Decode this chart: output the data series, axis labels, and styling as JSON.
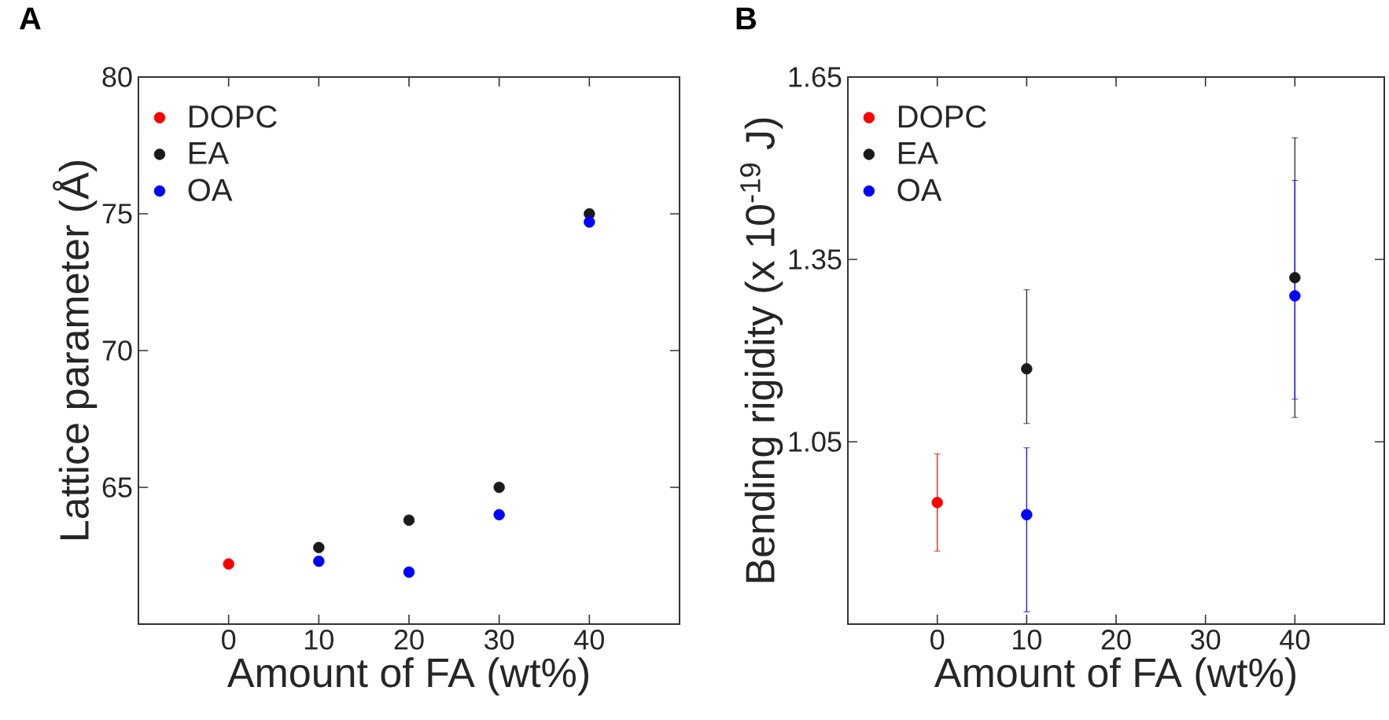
{
  "chart_data": [
    {
      "type": "scatter",
      "title": "A",
      "xlabel": "Amount of FA (wt%)",
      "ylabel": "Lattice parameter (Å)",
      "xlim": [
        -10,
        50
      ],
      "ylim": [
        60,
        80
      ],
      "xticks": [
        0,
        10,
        20,
        30,
        40
      ],
      "yticks": [
        65,
        70,
        75,
        80
      ],
      "legend": "top left",
      "marker": "circle",
      "series": [
        {
          "name": "DOPC",
          "color": "#ff0000",
          "x": [
            0
          ],
          "values": [
            62.2
          ]
        },
        {
          "name": "EA",
          "color": "#1a1a1a",
          "x": [
            10,
            20,
            30,
            40
          ],
          "values": [
            62.8,
            63.8,
            65.0,
            75.0
          ]
        },
        {
          "name": "OA",
          "color": "#0000ff",
          "x": [
            10,
            20,
            30,
            40
          ],
          "values": [
            62.3,
            61.9,
            64.0,
            74.7
          ]
        }
      ]
    },
    {
      "type": "scatter",
      "title": "B",
      "xlabel": "Amount of FA (wt%)",
      "ylabel": "Bending rigidity (x 10$^{-19}$ J)",
      "xlim": [
        -10,
        50
      ],
      "ylim": [
        0.75,
        1.65
      ],
      "xticks": [
        0,
        10,
        20,
        30,
        40
      ],
      "yticks": [
        1.05,
        1.35,
        1.65
      ],
      "legend": "top left",
      "marker": "circle",
      "series": [
        {
          "name": "DOPC",
          "color": "#ff0000",
          "x": [
            0
          ],
          "values": [
            0.95
          ],
          "errors": [
            [
              0.87,
              1.03
            ]
          ]
        },
        {
          "name": "EA",
          "color": "#1a1a1a",
          "x": [
            10,
            40
          ],
          "values": [
            1.17,
            1.32
          ],
          "errors": [
            [
              1.08,
              1.3
            ],
            [
              1.09,
              1.55
            ]
          ]
        },
        {
          "name": "OA",
          "color": "#0000ff",
          "x": [
            10,
            40
          ],
          "values": [
            0.93,
            1.29
          ],
          "errors": [
            [
              0.77,
              1.04
            ],
            [
              1.12,
              1.48
            ]
          ]
        }
      ]
    }
  ]
}
